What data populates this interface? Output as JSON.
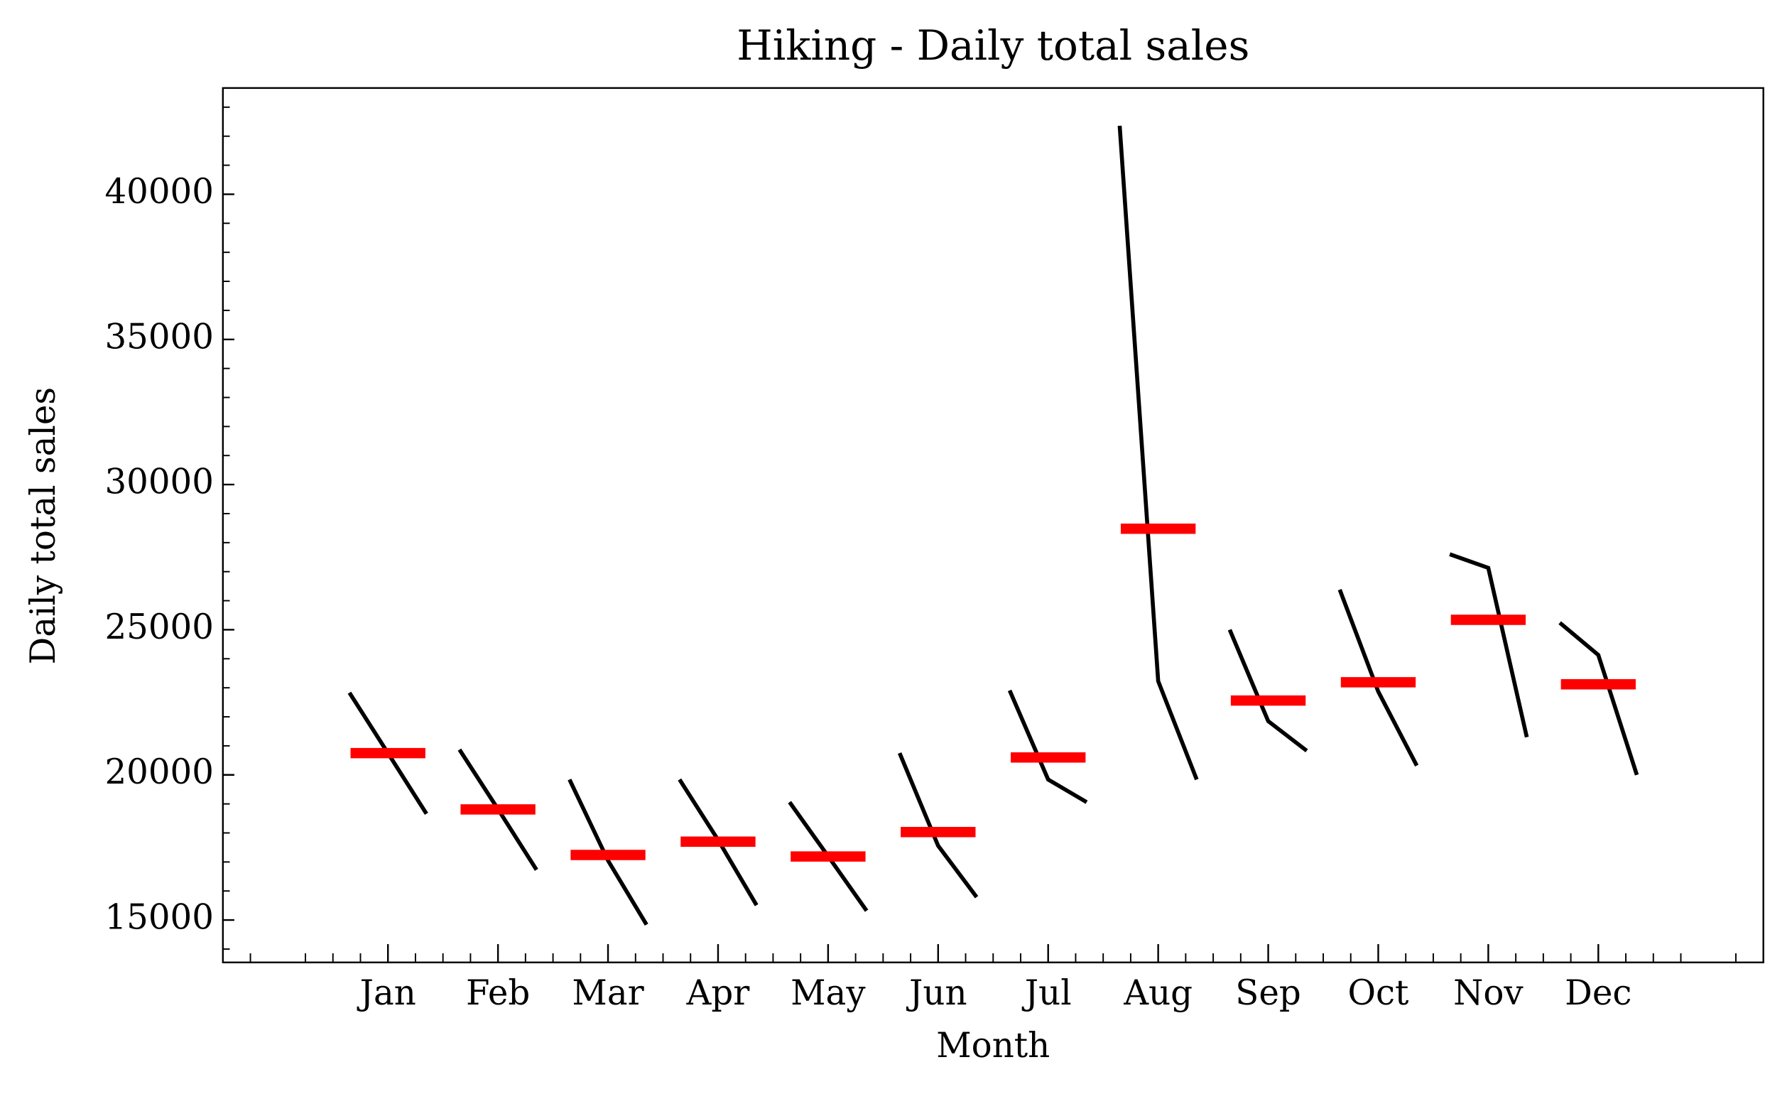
{
  "chart_data": {
    "type": "month_plot",
    "title": "Hiking - Daily total sales",
    "x_label": "Month",
    "y_label": "Daily total sales",
    "categories": [
      "Jan",
      "Feb",
      "Mar",
      "Apr",
      "May",
      "Jun",
      "Jul",
      "Aug",
      "Sep",
      "Oct",
      "Nov",
      "Dec"
    ],
    "values": [
      [
        22830,
        20750,
        18660
      ],
      [
        20870,
        18820,
        16730
      ],
      [
        19840,
        17050,
        14840
      ],
      [
        19840,
        17760,
        15510
      ],
      [
        19060,
        17200,
        15320
      ],
      [
        20750,
        17560,
        15790
      ],
      [
        22910,
        19840,
        19060
      ],
      [
        42360,
        23230,
        19840
      ],
      [
        25000,
        21850,
        20830
      ],
      [
        26380,
        22870,
        20320
      ],
      [
        27600,
        27130,
        21300
      ],
      [
        25240,
        24130,
        20000
      ]
    ],
    "means": [
      20750,
      18810,
      17240,
      17700,
      17190,
      18030,
      20600,
      28480,
      22560,
      23190,
      25340,
      23120
    ],
    "line_color": "#000000",
    "mean_color": "#ff0000",
    "ylim": [
      13540,
      43660
    ],
    "yticks": [
      15000,
      20000,
      25000,
      30000,
      35000,
      40000
    ],
    "yminorticks": [
      14000,
      16000,
      17000,
      18000,
      19000,
      21000,
      22000,
      23000,
      24000,
      26000,
      27000,
      28000,
      29000,
      31000,
      32000,
      33000,
      34000,
      36000,
      37000,
      38000,
      39000,
      41000,
      42000,
      43000
    ]
  }
}
